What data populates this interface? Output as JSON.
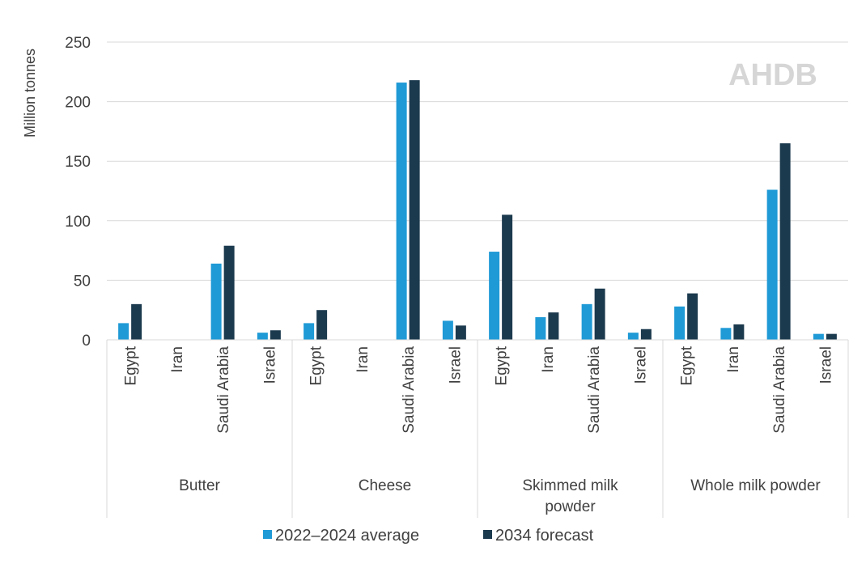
{
  "watermark": "AHDB",
  "chart_data": {
    "type": "bar",
    "title": "",
    "ylabel": "Million tonnes",
    "xlabel": "",
    "ylim": [
      0,
      250
    ],
    "yticks": [
      0,
      50,
      100,
      150,
      200,
      250
    ],
    "grid": true,
    "legend_position": "bottom",
    "groups": [
      {
        "label": "Butter",
        "categories": [
          "Egypt",
          "Iran",
          "Saudi Arabia",
          "Israel"
        ]
      },
      {
        "label": "Cheese",
        "categories": [
          "Egypt",
          "Iran",
          "Saudi Arabia",
          "Israel"
        ]
      },
      {
        "label": "Skimmed milk powder",
        "label_lines": [
          "Skimmed milk",
          "powder"
        ],
        "categories": [
          "Egypt",
          "Iran",
          "Saudi Arabia",
          "Israel"
        ]
      },
      {
        "label": "Whole milk powder",
        "categories": [
          "Egypt",
          "Iran",
          "Saudi Arabia",
          "Israel"
        ]
      }
    ],
    "series": [
      {
        "name": "2022–2024 average",
        "color": "#1f9ad6",
        "values": [
          14,
          0,
          64,
          6,
          14,
          0,
          216,
          16,
          74,
          19,
          30,
          6,
          28,
          10,
          126,
          5
        ]
      },
      {
        "name": "2034 forecast",
        "color": "#1c3a4e",
        "values": [
          30,
          0,
          79,
          8,
          25,
          0,
          218,
          12,
          105,
          23,
          43,
          9,
          39,
          13,
          165,
          5
        ]
      }
    ]
  }
}
